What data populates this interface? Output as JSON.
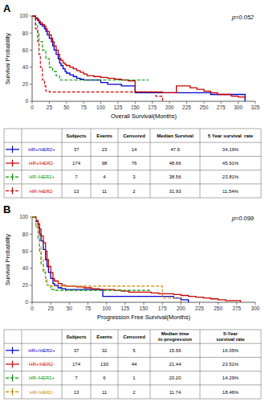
{
  "chart_data": [
    {
      "type": "step",
      "title": "A",
      "annotations": [
        "p=0.052"
      ],
      "x_label": "Overall Survival(Months)",
      "y_label": "Survival Probability",
      "xlim": [
        0,
        325
      ],
      "ylim": [
        0,
        100
      ],
      "xticks": [
        0,
        25,
        50,
        75,
        100,
        125,
        150,
        175,
        200,
        225,
        250,
        275,
        300,
        325
      ],
      "yticks": [
        0,
        20,
        40,
        60,
        80,
        100
      ],
      "series": [
        {
          "name": "HR+/HER2+",
          "color": "#0000cc",
          "line_style": "solid",
          "x": [
            0,
            5,
            8,
            10,
            12,
            15,
            18,
            20,
            22,
            25,
            28,
            30,
            32,
            35,
            38,
            40,
            42,
            45,
            48,
            50,
            55,
            60,
            65,
            70,
            75,
            80,
            90,
            100,
            110,
            120,
            130,
            140,
            150,
            160,
            170,
            180,
            190,
            200,
            210,
            220,
            230,
            240,
            250,
            260,
            270,
            280,
            290,
            300,
            310
          ],
          "values": [
            100,
            97,
            95,
            92,
            90,
            88,
            85,
            82,
            78,
            74,
            70,
            65,
            60,
            55,
            50,
            45,
            42,
            38,
            35,
            33,
            31,
            29,
            27,
            26,
            25,
            25,
            25,
            22,
            20,
            20,
            18,
            18,
            10,
            10,
            10,
            10,
            10,
            10,
            10,
            10,
            10,
            10,
            10,
            8,
            8,
            8,
            8,
            8,
            0
          ]
        },
        {
          "name": "HR+/HER2-",
          "color": "#cc0000",
          "line_style": "solid",
          "x": [
            0,
            5,
            8,
            10,
            12,
            15,
            18,
            20,
            22,
            25,
            28,
            30,
            32,
            35,
            38,
            40,
            42,
            45,
            48,
            50,
            55,
            60,
            65,
            70,
            75,
            80,
            90,
            100,
            110,
            120,
            130,
            140,
            150,
            160,
            170,
            180,
            190,
            200,
            210,
            220,
            230,
            240,
            250,
            260,
            270,
            280,
            290,
            300,
            310
          ],
          "values": [
            100,
            98,
            96,
            94,
            92,
            90,
            88,
            85,
            82,
            78,
            74,
            70,
            65,
            60,
            55,
            50,
            48,
            45,
            43,
            42,
            40,
            38,
            36,
            34,
            32,
            30,
            29,
            28,
            27,
            26,
            25,
            24,
            11,
            11,
            11,
            11,
            10,
            10,
            18,
            18,
            16,
            14,
            12,
            10,
            8,
            8,
            6,
            5,
            3
          ]
        },
        {
          "name": "HR-/HER2+",
          "color": "#009900",
          "line_style": "dashed",
          "x": [
            0,
            5,
            8,
            10,
            15,
            20,
            25,
            30,
            35,
            40,
            45,
            50,
            60,
            70,
            80,
            90,
            100,
            110,
            120,
            130,
            140,
            150,
            160,
            170
          ],
          "values": [
            100,
            90,
            80,
            70,
            60,
            50,
            40,
            35,
            30,
            25,
            25,
            25,
            25,
            25,
            25,
            25,
            25,
            25,
            25,
            25,
            25,
            25,
            25,
            25
          ]
        },
        {
          "name": "HR-/HER2-",
          "color": "#cc0000",
          "line_style": "dashed",
          "x": [
            0,
            5,
            8,
            10,
            12,
            15,
            18,
            20,
            25,
            30,
            35,
            40,
            45,
            50,
            60,
            70,
            80,
            90,
            100,
            110,
            120,
            130,
            140,
            150,
            160,
            170,
            180,
            190
          ],
          "values": [
            100,
            85,
            70,
            55,
            40,
            25,
            18,
            12,
            11,
            11,
            11,
            11,
            11,
            11,
            11,
            11,
            11,
            11,
            11,
            11,
            11,
            11,
            11,
            11,
            11,
            11,
            6,
            0
          ]
        }
      ],
      "table": {
        "columns": [
          "Subjects",
          "Events",
          "Censored",
          "Median Survival",
          "5 Year survival  rate"
        ],
        "rows": [
          [
            "37",
            "23",
            "14",
            "47.9",
            "34.19%"
          ],
          [
            "174",
            "98",
            "76",
            "48.66",
            "45.91%"
          ],
          [
            "7",
            "4",
            "3",
            "38.56",
            "23.81%"
          ],
          [
            "13",
            "11",
            "2",
            "31.93",
            "11.54%"
          ]
        ]
      }
    },
    {
      "type": "step",
      "title": "B",
      "annotations": [
        "p=0.099"
      ],
      "x_label": "Progression Free Survival(Months)",
      "y_label": "Survival Probability",
      "xlim": [
        0,
        300
      ],
      "ylim": [
        0,
        100
      ],
      "xticks": [
        0,
        25,
        50,
        75,
        100,
        125,
        150,
        175,
        200,
        225,
        250,
        275,
        300
      ],
      "yticks": [
        0,
        20,
        40,
        60,
        80,
        100
      ],
      "series": [
        {
          "name": "HR+/HER2+",
          "color": "#0000cc",
          "line_style": "solid",
          "x": [
            0,
            5,
            8,
            10,
            12,
            15,
            18,
            20,
            22,
            25,
            28,
            30,
            35,
            40,
            45,
            50,
            60,
            70,
            80,
            90,
            95,
            100,
            110,
            120,
            130,
            140,
            150,
            160,
            170,
            175,
            180,
            190,
            200,
            210
          ],
          "values": [
            100,
            95,
            88,
            80,
            72,
            62,
            50,
            42,
            35,
            28,
            22,
            20,
            17,
            16,
            15,
            15,
            15,
            15,
            15,
            15,
            7,
            7,
            7,
            7,
            7,
            7,
            7,
            7,
            7,
            7,
            7,
            5,
            3,
            0
          ]
        },
        {
          "name": "HR+/HER2-",
          "color": "#cc0000",
          "line_style": "solid",
          "x": [
            0,
            5,
            8,
            10,
            12,
            15,
            18,
            20,
            22,
            25,
            28,
            30,
            35,
            40,
            45,
            50,
            60,
            70,
            80,
            90,
            100,
            110,
            120,
            130,
            140,
            150,
            160,
            170,
            175,
            180,
            190,
            200,
            210,
            220,
            230,
            240,
            250,
            260,
            270,
            280
          ],
          "values": [
            100,
            96,
            92,
            86,
            78,
            70,
            60,
            50,
            42,
            35,
            28,
            25,
            22,
            20,
            19,
            19,
            18,
            17,
            16,
            15,
            15,
            14,
            13,
            12,
            12,
            12,
            11,
            10,
            10,
            10,
            9,
            8,
            7,
            6,
            5,
            4,
            3,
            2,
            2,
            0
          ]
        },
        {
          "name": "HR-/HER2+",
          "color": "#009900",
          "line_style": "dashed",
          "x": [
            0,
            5,
            8,
            10,
            12,
            15,
            18,
            20,
            25,
            30,
            35,
            40,
            50,
            60,
            70,
            80,
            90,
            100,
            110,
            120,
            130,
            140,
            150,
            160
          ],
          "values": [
            100,
            88,
            75,
            60,
            45,
            35,
            25,
            20,
            15,
            14,
            14,
            14,
            14,
            14,
            14,
            14,
            14,
            14,
            14,
            14,
            14,
            14,
            14,
            14
          ]
        },
        {
          "name": "HR-/HER2-",
          "color": "#cc8800",
          "line_style": "dashed",
          "x": [
            0,
            5,
            8,
            10,
            12,
            15,
            18,
            20,
            25,
            30,
            35,
            40,
            45,
            50,
            60,
            70,
            80,
            90,
            100,
            110,
            120,
            130,
            140,
            150,
            160,
            170,
            175,
            180,
            185,
            190,
            200
          ],
          "values": [
            100,
            90,
            80,
            65,
            50,
            38,
            28,
            20,
            19,
            19,
            19,
            19,
            19,
            19,
            19,
            19,
            19,
            19,
            19,
            19,
            19,
            19,
            19,
            19,
            19,
            19,
            5,
            5,
            5,
            5,
            0
          ]
        }
      ],
      "table": {
        "columns": [
          "Subjects",
          "Events",
          "Censored",
          "Median time\nto progression",
          "5-Year\nsurvival rate"
        ],
        "rows": [
          [
            "37",
            "32",
            "5",
            "15.56",
            "16.05%"
          ],
          [
            "174",
            "130",
            "44",
            "21.44",
            "23.51%"
          ],
          [
            "7",
            "6",
            "1",
            "20.20",
            "14.29%"
          ],
          [
            "13",
            "11",
            "2",
            "11.74",
            "18.46%"
          ]
        ]
      }
    }
  ]
}
